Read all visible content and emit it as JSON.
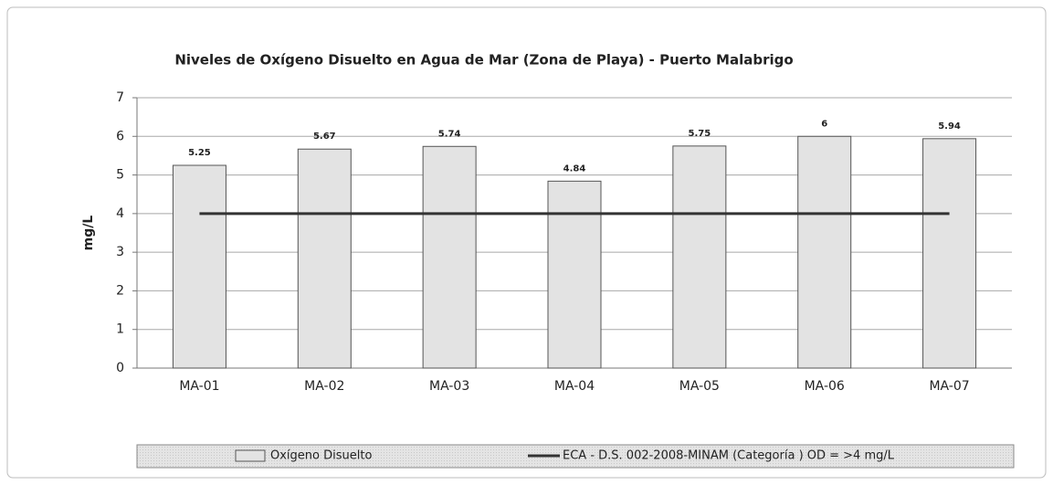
{
  "chart_data": {
    "type": "bar",
    "title": "Niveles de Oxígeno Disuelto en Agua de Mar (Zona de Playa) - Puerto Malabrigo",
    "y_label": "mg/L",
    "categories": [
      "MA-01",
      "MA-02",
      "MA-03",
      "MA-04",
      "MA-05",
      "MA-06",
      "MA-07"
    ],
    "series": [
      {
        "name": "Oxígeno Disuelto",
        "type": "bar",
        "color": "#e3e3e3",
        "values": [
          5.25,
          5.67,
          5.74,
          4.84,
          5.75,
          6,
          5.94
        ]
      },
      {
        "name": "ECA - D.S. 002-2008-MINAM (Categoría ) OD = >4 mg/L",
        "type": "line",
        "color": "#333333",
        "values": [
          4,
          4,
          4,
          4,
          4,
          4,
          4
        ]
      }
    ],
    "ylim": [
      0,
      7
    ],
    "yticks": [
      0,
      1,
      2,
      3,
      4,
      5,
      6,
      7
    ],
    "grid": true,
    "legend": "bottom"
  }
}
